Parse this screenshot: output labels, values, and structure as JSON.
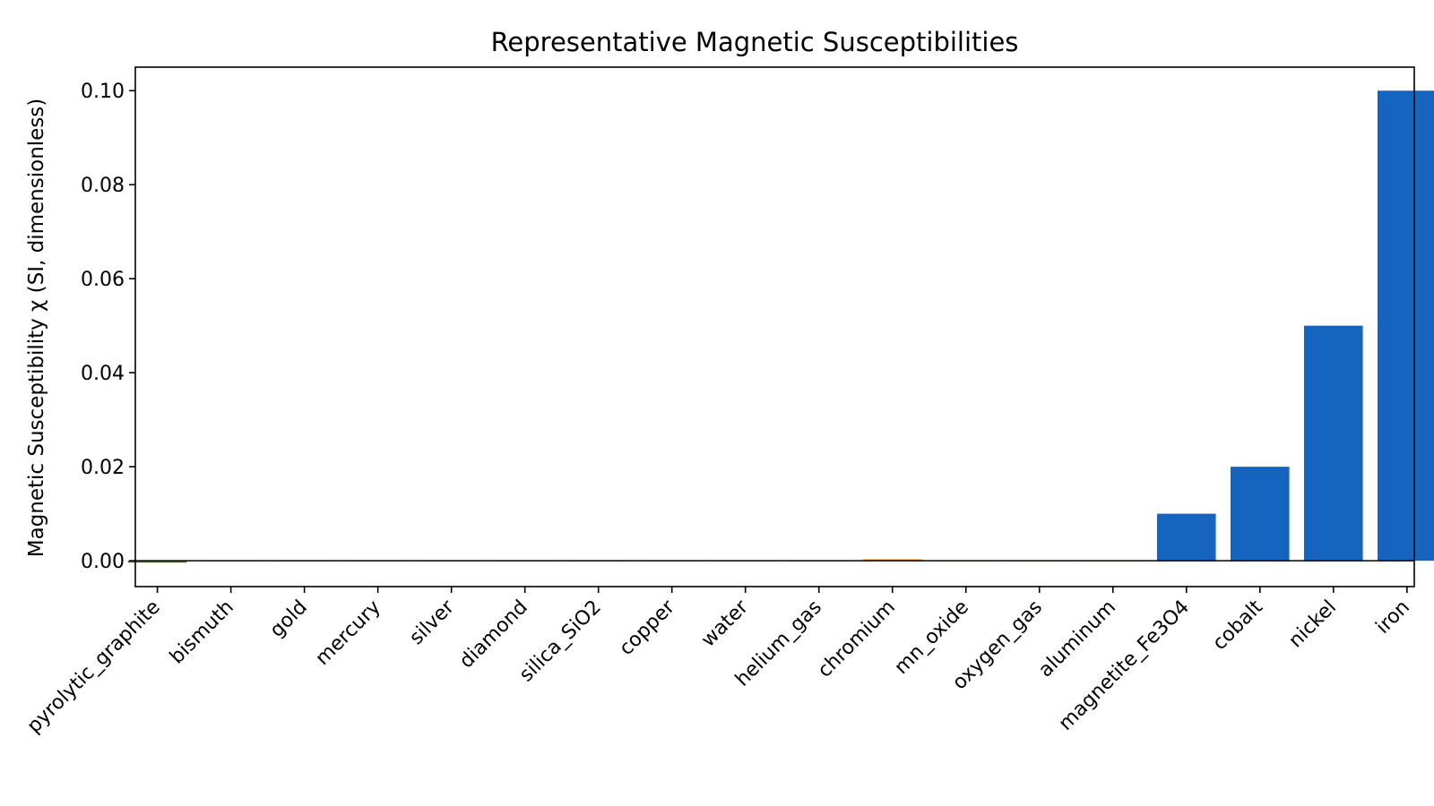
{
  "chart_data": {
    "type": "bar",
    "title": "Representative Magnetic Susceptibilities",
    "xlabel": "",
    "ylabel": "Magnetic Susceptibility χ (SI, dimensionless)",
    "ylim": [
      -0.0055,
      0.105
    ],
    "yticks": [
      0.0,
      0.02,
      0.04,
      0.06,
      0.08,
      0.1
    ],
    "ytick_labels": [
      "0.00",
      "0.02",
      "0.04",
      "0.06",
      "0.08",
      "0.10"
    ],
    "grid": false,
    "zero_line": true,
    "categories": [
      "pyrolytic_graphite",
      "bismuth",
      "gold",
      "mercury",
      "silver",
      "diamond",
      "silica_SiO2",
      "copper",
      "water",
      "helium_gas",
      "chromium",
      "mn_oxide",
      "oxygen_gas",
      "aluminum",
      "magnetite_Fe3O4",
      "cobalt",
      "nickel",
      "iron"
    ],
    "values": [
      -0.0004,
      -0.000166,
      -3.4e-05,
      -2.9e-05,
      -2.4e-05,
      -2.2e-05,
      -1.4e-05,
      -9.7e-06,
      -9e-06,
      -1e-09,
      0.00031,
      1e-05,
      1.9e-06,
      2.2e-05,
      0.01,
      0.02,
      0.05,
      0.1
    ],
    "colors": {
      "diamagnetic": "#2e7d32",
      "paramagnetic": "#ff8c00",
      "ferromagnetic": "#1565c0"
    },
    "bar_colors": [
      "#2e7d32",
      "#2e7d32",
      "#2e7d32",
      "#2e7d32",
      "#2e7d32",
      "#2e7d32",
      "#2e7d32",
      "#2e7d32",
      "#2e7d32",
      "#2e7d32",
      "#ff8c00",
      "#ff8c00",
      "#ff8c00",
      "#ff8c00",
      "#1565c0",
      "#1565c0",
      "#1565c0",
      "#1565c0"
    ]
  }
}
